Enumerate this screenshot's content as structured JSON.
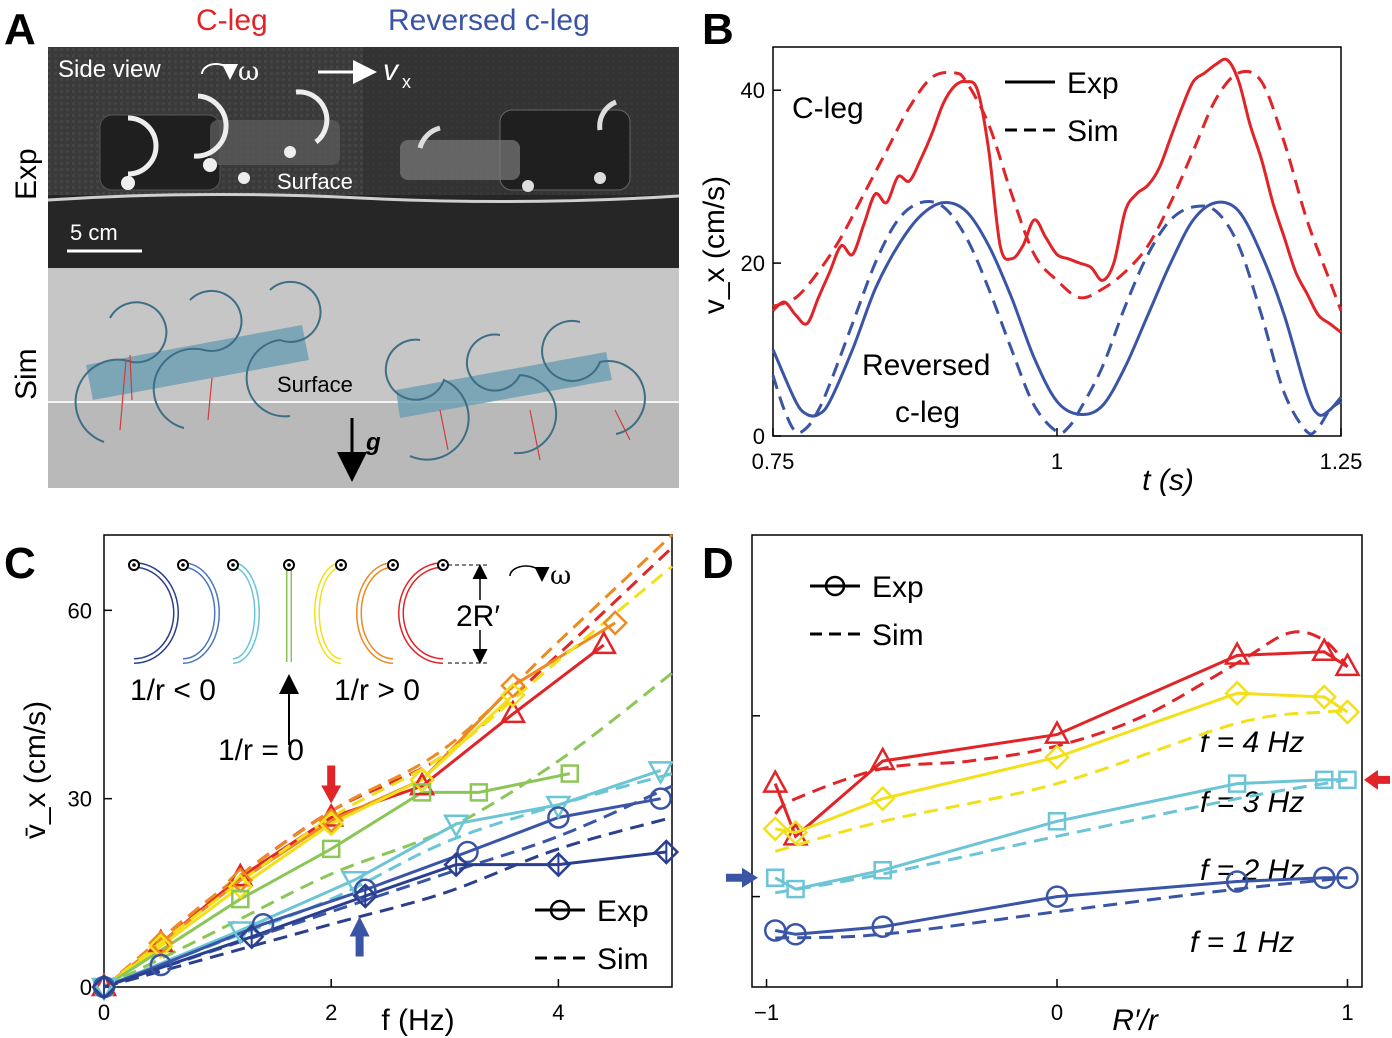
{
  "panels": {
    "A": {
      "letter": "A",
      "title_left": "C-leg",
      "title_right": "Reversed c-leg",
      "row_exp": "Exp",
      "row_sim": "Sim",
      "side_view": "Side view",
      "omega": "ω",
      "vx_main": "v",
      "vx_sub": "x",
      "surface_exp": "Surface",
      "surface_sim": "Surface",
      "scale_bar": "5 cm",
      "gravity": "g"
    },
    "B": {
      "letter": "B"
    },
    "C": {
      "letter": "C",
      "inset_neg": "1/r < 0",
      "inset_zero": "1/r = 0",
      "inset_pos": "1/r > 0",
      "inset_2R": "2R′",
      "inset_omega": "ω"
    },
    "D": {
      "letter": "D"
    }
  },
  "colors": {
    "red": "#e02428",
    "blue": "#3a55a6",
    "lightblue": "#6cc5d6",
    "yellow": "#f2e01a",
    "orange": "#ee8a22",
    "green": "#8cc657",
    "midblue": "#4d75c0",
    "navy": "#2a3f8f"
  },
  "chart_data": [
    {
      "id": "B",
      "type": "line",
      "xlabel": "t (s)",
      "ylabel": "v_x (cm/s)",
      "xlim": [
        0.75,
        1.25
      ],
      "ylim": [
        0,
        45
      ],
      "xticks": [
        "0.75",
        "1",
        "1.25"
      ],
      "yticks": [
        "0",
        "20",
        "40"
      ],
      "legend": [
        "Exp",
        "Sim"
      ],
      "annotations": [
        "C-leg",
        "Reversed",
        "c-leg"
      ],
      "series": [
        {
          "name": "C-leg Exp",
          "color": "red",
          "dash": false,
          "x": [
            0.75,
            0.76,
            0.77,
            0.78,
            0.79,
            0.8,
            0.81,
            0.82,
            0.83,
            0.84,
            0.85,
            0.86,
            0.87,
            0.88,
            0.89,
            0.9,
            0.91,
            0.92,
            0.93,
            0.94,
            0.95,
            0.96,
            0.97,
            0.98,
            0.99,
            1.0,
            1.01,
            1.02,
            1.03,
            1.04,
            1.05,
            1.06,
            1.07,
            1.08,
            1.09,
            1.1,
            1.11,
            1.12,
            1.13,
            1.14,
            1.15,
            1.16,
            1.17,
            1.18,
            1.19,
            1.2,
            1.21,
            1.22,
            1.23,
            1.24,
            1.25
          ],
          "y": [
            14.5,
            15.5,
            14,
            13,
            16,
            19,
            22,
            21,
            24.5,
            28,
            27,
            30,
            29.5,
            32,
            35,
            38.5,
            40.5,
            41,
            40,
            33,
            22,
            20.5,
            22,
            25,
            23,
            21,
            20.5,
            20,
            19.5,
            18,
            20,
            26,
            28,
            29,
            31,
            34.5,
            38,
            41,
            42,
            43,
            43.5,
            41,
            36,
            32,
            27,
            23,
            19,
            16.5,
            14,
            13,
            12
          ]
        },
        {
          "name": "C-leg Sim",
          "color": "red",
          "dash": true,
          "x": [
            0.75,
            0.77,
            0.79,
            0.81,
            0.83,
            0.85,
            0.87,
            0.89,
            0.91,
            0.92,
            0.94,
            0.96,
            0.98,
            1.0,
            1.02,
            1.04,
            1.06,
            1.08,
            1.1,
            1.12,
            1.14,
            1.16,
            1.18,
            1.2,
            1.22,
            1.24,
            1.25
          ],
          "y": [
            15,
            16,
            19,
            23,
            28,
            33,
            38,
            41.5,
            42,
            41,
            36,
            28,
            21,
            18,
            16,
            17,
            19,
            22,
            27,
            33,
            39,
            42,
            41,
            34,
            25,
            18,
            14.5
          ]
        },
        {
          "name": "Reversed c-leg Exp",
          "color": "blue",
          "dash": false,
          "x": [
            0.75,
            0.77,
            0.78,
            0.79,
            0.8,
            0.82,
            0.84,
            0.86,
            0.88,
            0.9,
            0.92,
            0.94,
            0.96,
            0.98,
            1.0,
            1.02,
            1.04,
            1.06,
            1.08,
            1.1,
            1.12,
            1.14,
            1.16,
            1.18,
            1.2,
            1.22,
            1.23,
            1.24,
            1.25
          ],
          "y": [
            10,
            4,
            2.5,
            2.5,
            4,
            10,
            17,
            22,
            25.5,
            27,
            26,
            22,
            16,
            9,
            4,
            2.5,
            3.5,
            8,
            14,
            20,
            25,
            27,
            26,
            21,
            14,
            5,
            2.5,
            3,
            4.5
          ]
        },
        {
          "name": "Reversed c-leg Sim",
          "color": "blue",
          "dash": true,
          "x": [
            0.75,
            0.76,
            0.77,
            0.78,
            0.79,
            0.8,
            0.82,
            0.84,
            0.86,
            0.88,
            0.9,
            0.92,
            0.94,
            0.96,
            0.98,
            1.0,
            1.01,
            1.02,
            1.04,
            1.06,
            1.08,
            1.1,
            1.12,
            1.14,
            1.16,
            1.18,
            1.2,
            1.22,
            1.23,
            1.24,
            1.25
          ],
          "y": [
            7,
            3,
            0.5,
            1,
            3,
            6,
            13,
            20,
            25,
            27,
            26.5,
            23,
            17,
            10,
            3.5,
            0.5,
            1,
            3,
            8,
            15,
            21,
            25,
            26.5,
            26,
            22,
            14,
            5,
            0.5,
            1,
            3,
            4
          ]
        }
      ]
    },
    {
      "id": "C",
      "type": "line",
      "xlabel": "f (Hz)",
      "ylabel": "v̄_x (cm/s)",
      "xlim": [
        0,
        5
      ],
      "ylim": [
        0,
        72
      ],
      "xticks": [
        "0",
        "2",
        "4"
      ],
      "yticks": [
        "0",
        "30",
        "60"
      ],
      "legend": [
        "Exp",
        "Sim"
      ],
      "series": [
        {
          "name": "1/r>0 red",
          "color": "red",
          "marker": "triangle",
          "x": [
            0,
            0.5,
            1.2,
            2.0,
            2.8,
            3.6,
            4.4
          ],
          "y": [
            0,
            7,
            17.5,
            27,
            32,
            43.5,
            54.5
          ],
          "sim_x": [
            0,
            1,
            2,
            3,
            4,
            5
          ],
          "sim_y": [
            0,
            15,
            28,
            37,
            53,
            70
          ]
        },
        {
          "name": "1/r>0 orange",
          "color": "orange",
          "marker": "diamond",
          "x": [
            0,
            0.5,
            1.2,
            2.0,
            2.8,
            3.6,
            4.5
          ],
          "y": [
            0,
            7,
            17,
            26.5,
            33,
            48,
            58
          ],
          "sim_x": [
            0,
            1,
            2,
            3,
            4,
            5
          ],
          "sim_y": [
            0,
            15,
            28,
            38,
            55,
            72
          ]
        },
        {
          "name": "1/r>0 yellow",
          "color": "yellow",
          "marker": "diamond",
          "x": [
            0,
            0.5,
            1.2,
            2.0,
            2.8,
            3.6
          ],
          "y": [
            0,
            6.5,
            16,
            26,
            33,
            46.5
          ],
          "sim_x": [
            0,
            1,
            2,
            3,
            4,
            5
          ],
          "sim_y": [
            0,
            14,
            27,
            37,
            52,
            67
          ]
        },
        {
          "name": "1/r=0 green",
          "color": "green",
          "marker": "square",
          "x": [
            0,
            1.2,
            2.0,
            2.8,
            3.3,
            4.1
          ],
          "y": [
            0,
            14,
            22,
            31,
            31,
            34
          ],
          "sim_x": [
            0,
            1,
            2,
            3,
            4,
            5
          ],
          "sim_y": [
            0,
            9,
            18,
            25,
            36,
            50
          ]
        },
        {
          "name": "1/r<0 lightblue",
          "color": "lightblue",
          "marker": "triangle_down",
          "x": [
            0,
            1.2,
            2.2,
            3.1,
            4.0,
            4.9
          ],
          "y": [
            0,
            9,
            17,
            26,
            29,
            34.5
          ],
          "sim_x": [
            0,
            1,
            2,
            3,
            4,
            5
          ],
          "sim_y": [
            0,
            7,
            14,
            23,
            29,
            34
          ]
        },
        {
          "name": "1/r<0 blue",
          "color": "blue",
          "marker": "circle",
          "x": [
            0,
            0.5,
            1.4,
            2.3,
            3.2,
            4.0,
            4.9
          ],
          "y": [
            0,
            3.5,
            10,
            15.5,
            21.5,
            27,
            30
          ],
          "sim_x": [
            0,
            1,
            2,
            3,
            4,
            5
          ],
          "sim_y": [
            0,
            6,
            12,
            18,
            24,
            32
          ]
        },
        {
          "name": "1/r<0 navy",
          "color": "navy",
          "marker": "diamond_cross",
          "x": [
            0,
            1.3,
            2.3,
            3.1,
            4.0,
            4.95
          ],
          "y": [
            0,
            8,
            14.5,
            19.5,
            19.5,
            21.5
          ],
          "sim_x": [
            0,
            1,
            2,
            3,
            4,
            5
          ],
          "sim_y": [
            0,
            5,
            10,
            15,
            22,
            27
          ]
        }
      ],
      "arrows": [
        {
          "color": "red",
          "x": 2.0,
          "y": 27,
          "dir": "down"
        },
        {
          "color": "blue",
          "x": 2.25,
          "y": 16,
          "dir": "up"
        }
      ]
    },
    {
      "id": "D",
      "type": "line",
      "xlabel": "R′/r",
      "ylabel": "",
      "xlim": [
        -1.05,
        1.05
      ],
      "ylim": [
        0,
        60
      ],
      "xticks": [
        "−1",
        "0",
        "1"
      ],
      "legend": [
        "Exp",
        "Sim"
      ],
      "series": [
        {
          "name": "f = 4 Hz",
          "color": "red",
          "marker": "triangle",
          "x": [
            -0.97,
            -0.9,
            -0.6,
            0.0,
            0.62,
            0.92,
            1.0
          ],
          "y": [
            27,
            20,
            30,
            33.5,
            44,
            44.5,
            42.5
          ],
          "sim_x": [
            -0.97,
            -0.9,
            -0.6,
            -0.3,
            0.0,
            0.3,
            0.62,
            0.8,
            0.92,
            1.0
          ],
          "sim_y": [
            23,
            25,
            29,
            30,
            32,
            36,
            43,
            47,
            46,
            42.5
          ],
          "label": "f = 4 Hz"
        },
        {
          "name": "f = 3 Hz",
          "color": "yellow",
          "marker": "diamond",
          "x": [
            -0.97,
            -0.9,
            -0.6,
            0.0,
            0.62,
            0.92,
            1.0
          ],
          "y": [
            21,
            20.5,
            25,
            30.5,
            39,
            38.5,
            36.5
          ],
          "sim_x": [
            -0.97,
            -0.6,
            0.0,
            0.62,
            0.92,
            1.0
          ],
          "sim_y": [
            18,
            22,
            27,
            35,
            36.5,
            36.5
          ],
          "label": "f = 3 Hz"
        },
        {
          "name": "f = 2 Hz",
          "color": "lightblue",
          "marker": "square",
          "x": [
            -0.97,
            -0.9,
            -0.6,
            0.0,
            0.62,
            0.92,
            1.0
          ],
          "y": [
            14.5,
            13,
            15.5,
            22,
            27,
            27.5,
            27.5
          ],
          "sim_x": [
            -0.97,
            -0.6,
            0.0,
            0.62,
            0.92,
            1.0
          ],
          "sim_y": [
            12.5,
            15,
            20,
            25,
            27,
            27.5
          ],
          "label": "f = 2 Hz"
        },
        {
          "name": "f = 1 Hz",
          "color": "blue",
          "marker": "circle",
          "x": [
            -0.97,
            -0.9,
            -0.6,
            0.0,
            0.62,
            0.92,
            1.0
          ],
          "y": [
            7.5,
            7,
            8,
            12,
            14,
            14.5,
            14.5
          ],
          "sim_x": [
            -0.97,
            -0.6,
            0.0,
            0.62,
            1.0
          ],
          "sim_y": [
            6.5,
            7,
            10,
            13,
            14.5
          ],
          "label": "f = 1 Hz"
        }
      ],
      "arrows": [
        {
          "color": "red",
          "side": "right",
          "y": 27.5
        },
        {
          "color": "blue",
          "side": "left",
          "y": 14.5
        }
      ]
    }
  ]
}
